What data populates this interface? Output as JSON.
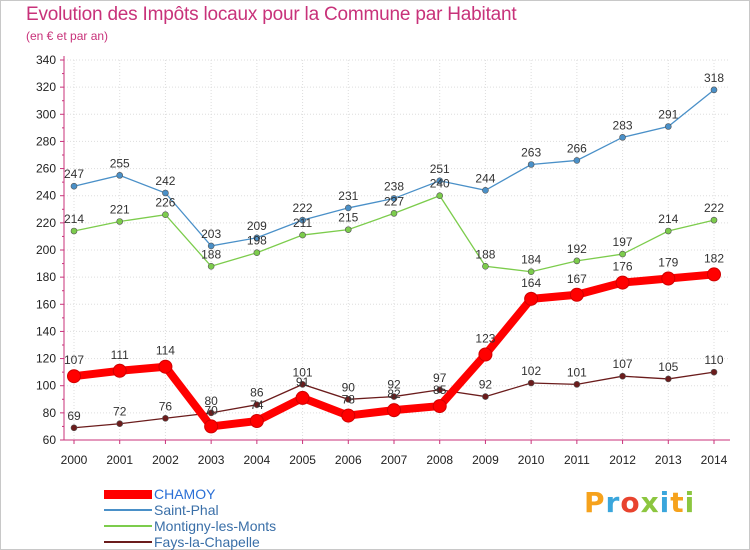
{
  "title": "Evolution des Impôts locaux pour la Commune par Habitant",
  "subtitle": "(en € et par an)",
  "brand": {
    "text": "Proxiti",
    "colors": [
      "#f6a21c",
      "#3aa6dc",
      "#e8432e",
      "#8cc63f",
      "#3aa6dc",
      "#f6a21c",
      "#8cc63f"
    ]
  },
  "chart_data": {
    "type": "line",
    "title": "Evolution des Impôts locaux pour la Commune par Habitant",
    "subtitle": "(en € et par an)",
    "xlabel": "",
    "ylabel": "",
    "x": [
      2000,
      2001,
      2002,
      2003,
      2004,
      2005,
      2006,
      2007,
      2008,
      2009,
      2010,
      2011,
      2012,
      2013,
      2014
    ],
    "ylim": [
      60,
      340
    ],
    "yticks": [
      60,
      80,
      100,
      120,
      140,
      160,
      180,
      200,
      220,
      240,
      260,
      280,
      300,
      320,
      340
    ],
    "grid": true,
    "legend_position": "bottom-left",
    "series": [
      {
        "name": "CHAMOY",
        "color": "#ff0000",
        "bold": true,
        "values": [
          107,
          111,
          114,
          70,
          74,
          91,
          78,
          82,
          85,
          123,
          164,
          167,
          176,
          179,
          182
        ]
      },
      {
        "name": "Saint-Phal",
        "color": "#4a90c8",
        "bold": false,
        "values": [
          247,
          255,
          242,
          203,
          209,
          222,
          231,
          238,
          251,
          244,
          263,
          266,
          283,
          291,
          318
        ]
      },
      {
        "name": "Montigny-les-Monts",
        "color": "#7ccc4c",
        "bold": false,
        "values": [
          214,
          221,
          226,
          188,
          198,
          211,
          215,
          227,
          240,
          188,
          184,
          192,
          197,
          214,
          222
        ]
      },
      {
        "name": "Fays-la-Chapelle",
        "color": "#6b1c1c",
        "bold": false,
        "values": [
          69,
          72,
          76,
          80,
          86,
          101,
          90,
          92,
          97,
          92,
          102,
          101,
          107,
          105,
          110
        ]
      }
    ]
  }
}
